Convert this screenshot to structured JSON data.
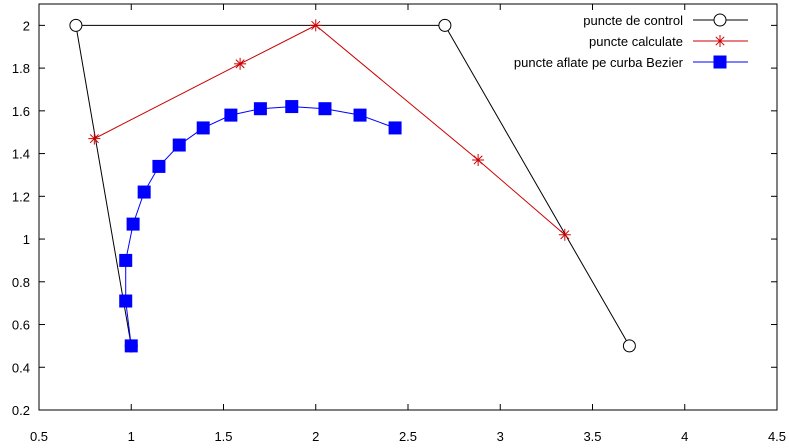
{
  "chart_data": {
    "type": "line",
    "xlim": [
      0.5,
      4.5
    ],
    "ylim": [
      0.2,
      2.1
    ],
    "x_ticks": [
      0.5,
      1,
      1.5,
      2,
      2.5,
      3,
      3.5,
      4,
      4.5
    ],
    "y_ticks": [
      0.2,
      0.4,
      0.6,
      0.8,
      1,
      1.2,
      1.4,
      1.6,
      1.8,
      2
    ],
    "grid": false,
    "legend_position": "top-right",
    "series": [
      {
        "name": "puncte de control",
        "color": "#000000",
        "marker": "circle",
        "points": [
          [
            1.0,
            0.5
          ],
          [
            0.7,
            2.0
          ],
          [
            2.7,
            2.0
          ],
          [
            3.7,
            0.5
          ]
        ]
      },
      {
        "name": "puncte calculate",
        "color": "#cc0000",
        "marker": "star",
        "points": [
          [
            0.8,
            1.47
          ],
          [
            1.59,
            1.82
          ],
          [
            2.0,
            2.0
          ],
          [
            2.88,
            1.37
          ],
          [
            3.35,
            1.02
          ]
        ]
      },
      {
        "name": "puncte aflate pe curba Bezier",
        "color": "#0000ff",
        "marker": "square",
        "points": [
          [
            1.0,
            0.5
          ],
          [
            0.97,
            0.71
          ],
          [
            0.97,
            0.9
          ],
          [
            1.01,
            1.07
          ],
          [
            1.07,
            1.22
          ],
          [
            1.15,
            1.34
          ],
          [
            1.26,
            1.44
          ],
          [
            1.39,
            1.52
          ],
          [
            1.54,
            1.58
          ],
          [
            1.7,
            1.61
          ],
          [
            1.87,
            1.62
          ],
          [
            2.05,
            1.61
          ],
          [
            2.24,
            1.58
          ],
          [
            2.43,
            1.52
          ]
        ]
      }
    ]
  }
}
